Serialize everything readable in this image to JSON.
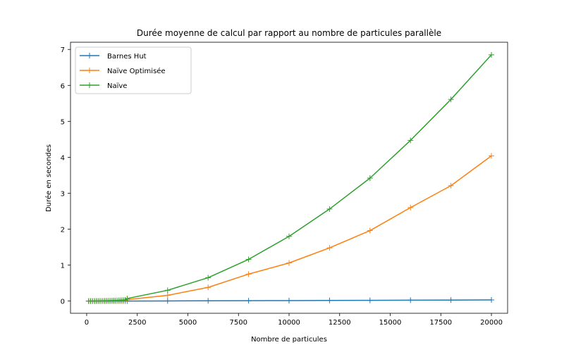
{
  "chart_data": {
    "type": "line",
    "title": "Durée moyenne de calcul par rapport au nombre de particules parallèle",
    "xlabel": "Nombre de particules",
    "ylabel": "Durée en secondes",
    "xlim": [
      -800,
      20800
    ],
    "ylim": [
      -0.34,
      7.2
    ],
    "x_ticks": [
      0,
      2500,
      5000,
      7500,
      10000,
      12500,
      15000,
      17500,
      20000
    ],
    "y_ticks": [
      0,
      1,
      2,
      3,
      4,
      5,
      6,
      7
    ],
    "grid": false,
    "legend_position": "upper-left",
    "marker": "+",
    "series": [
      {
        "name": "Barnes Hut",
        "color": "#1f77b4",
        "x": [
          100,
          200,
          300,
          400,
          500,
          600,
          700,
          800,
          900,
          1000,
          1100,
          1200,
          1300,
          1400,
          1500,
          1600,
          1700,
          1800,
          1900,
          2000,
          4000,
          6000,
          8000,
          10000,
          12000,
          14000,
          16000,
          18000,
          20000
        ],
        "y": [
          0.0,
          0.0,
          0.0,
          0.0,
          0.0,
          0.0,
          0.0,
          0.0,
          0.0,
          0.0,
          0.0,
          0.0,
          0.0,
          0.0,
          0.0,
          0.0,
          0.0,
          0.0,
          0.0,
          0.001,
          0.004,
          0.007,
          0.01,
          0.013,
          0.017,
          0.02,
          0.024,
          0.028,
          0.032
        ]
      },
      {
        "name": "Naïve Optimisée",
        "color": "#ff7f0e",
        "x": [
          100,
          200,
          300,
          400,
          500,
          600,
          700,
          800,
          900,
          1000,
          1100,
          1200,
          1300,
          1400,
          1500,
          1600,
          1700,
          1800,
          1900,
          2000,
          4000,
          6000,
          8000,
          10000,
          12000,
          14000,
          16000,
          18000,
          20000
        ],
        "y": [
          0.0,
          0.0,
          0.0,
          0.001,
          0.001,
          0.002,
          0.002,
          0.003,
          0.004,
          0.005,
          0.006,
          0.007,
          0.008,
          0.009,
          0.011,
          0.012,
          0.014,
          0.015,
          0.017,
          0.04,
          0.16,
          0.38,
          0.75,
          1.06,
          1.48,
          1.96,
          2.6,
          3.21,
          4.04
        ]
      },
      {
        "name": "Naïve",
        "color": "#2ca02c",
        "x": [
          100,
          200,
          300,
          400,
          500,
          600,
          700,
          800,
          900,
          1000,
          1100,
          1200,
          1300,
          1400,
          1500,
          1600,
          1700,
          1800,
          1900,
          2000,
          4000,
          6000,
          8000,
          10000,
          12000,
          14000,
          16000,
          18000,
          20000
        ],
        "y": [
          0.0,
          0.0,
          0.001,
          0.001,
          0.002,
          0.003,
          0.004,
          0.005,
          0.007,
          0.008,
          0.01,
          0.012,
          0.014,
          0.016,
          0.019,
          0.022,
          0.025,
          0.028,
          0.031,
          0.07,
          0.3,
          0.65,
          1.16,
          1.8,
          2.56,
          3.42,
          4.47,
          5.61,
          6.85
        ]
      }
    ]
  }
}
